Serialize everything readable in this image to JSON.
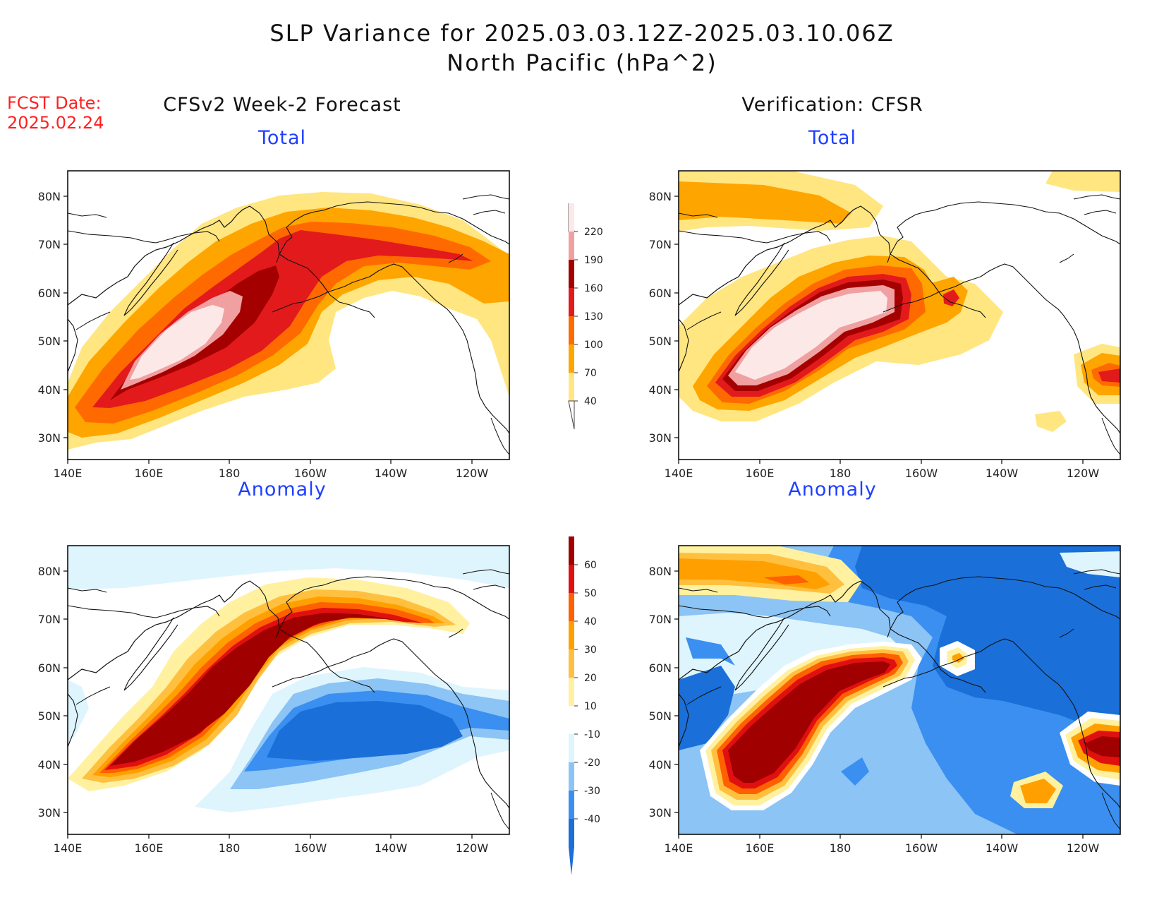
{
  "header": {
    "title_line1": "SLP Variance for 2025.03.03.12Z-2025.03.10.06Z",
    "title_line2": "North Pacific (hPa^2)",
    "fcst_label": "FCST Date:",
    "fcst_date": "2025.02.24"
  },
  "columns": {
    "left": "CFSv2 Week-2 Forecast",
    "right": "Verification: CFSR"
  },
  "panels": {
    "total_label": "Total",
    "anomaly_label": "Anomaly"
  },
  "axes": {
    "lat_ticks": [
      "80N",
      "70N",
      "60N",
      "50N",
      "40N",
      "30N"
    ],
    "lon_ticks": [
      "140E",
      "160E",
      "180",
      "160W",
      "140W",
      "120W"
    ]
  },
  "colorbars": {
    "total": {
      "levels": [
        "40",
        "70",
        "100",
        "130",
        "160",
        "190",
        "220"
      ],
      "colors": [
        "#ffe680",
        "#ffa500",
        "#ff6a00",
        "#e31a1c",
        "#a50000",
        "#f0a0a0",
        "#fde8e8"
      ]
    },
    "anomaly": {
      "levels": [
        "-40",
        "-30",
        "-20",
        "-10",
        "10",
        "20",
        "30",
        "40",
        "50",
        "60"
      ],
      "colors": [
        "#1a6fd8",
        "#3a8ff0",
        "#8cc4f5",
        "#dff5fd",
        "#ffffff",
        "#fff1a0",
        "#ffc040",
        "#ffa000",
        "#ff6000",
        "#e01010",
        "#a00000"
      ]
    }
  }
}
